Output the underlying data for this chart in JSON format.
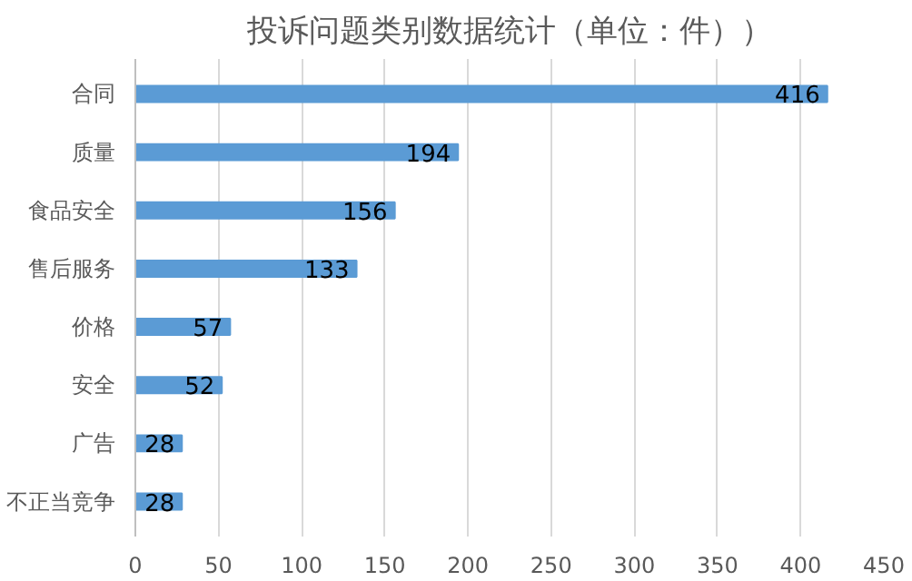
{
  "chart_data": {
    "type": "bar",
    "orientation": "horizontal",
    "title": "投诉问题类别数据统计（单位：件））",
    "categories": [
      "合同",
      "质量",
      "食品安全",
      "售后服务",
      "价格",
      "安全",
      "广告",
      "不正当竞争"
    ],
    "values": [
      416,
      194,
      156,
      133,
      57,
      52,
      28,
      28
    ],
    "color": "#5b9bd5",
    "xlim": [
      0,
      450
    ],
    "xticks": [
      0,
      50,
      100,
      150,
      200,
      250,
      300,
      350,
      400,
      450
    ],
    "grid": "x",
    "data_labels": true
  }
}
